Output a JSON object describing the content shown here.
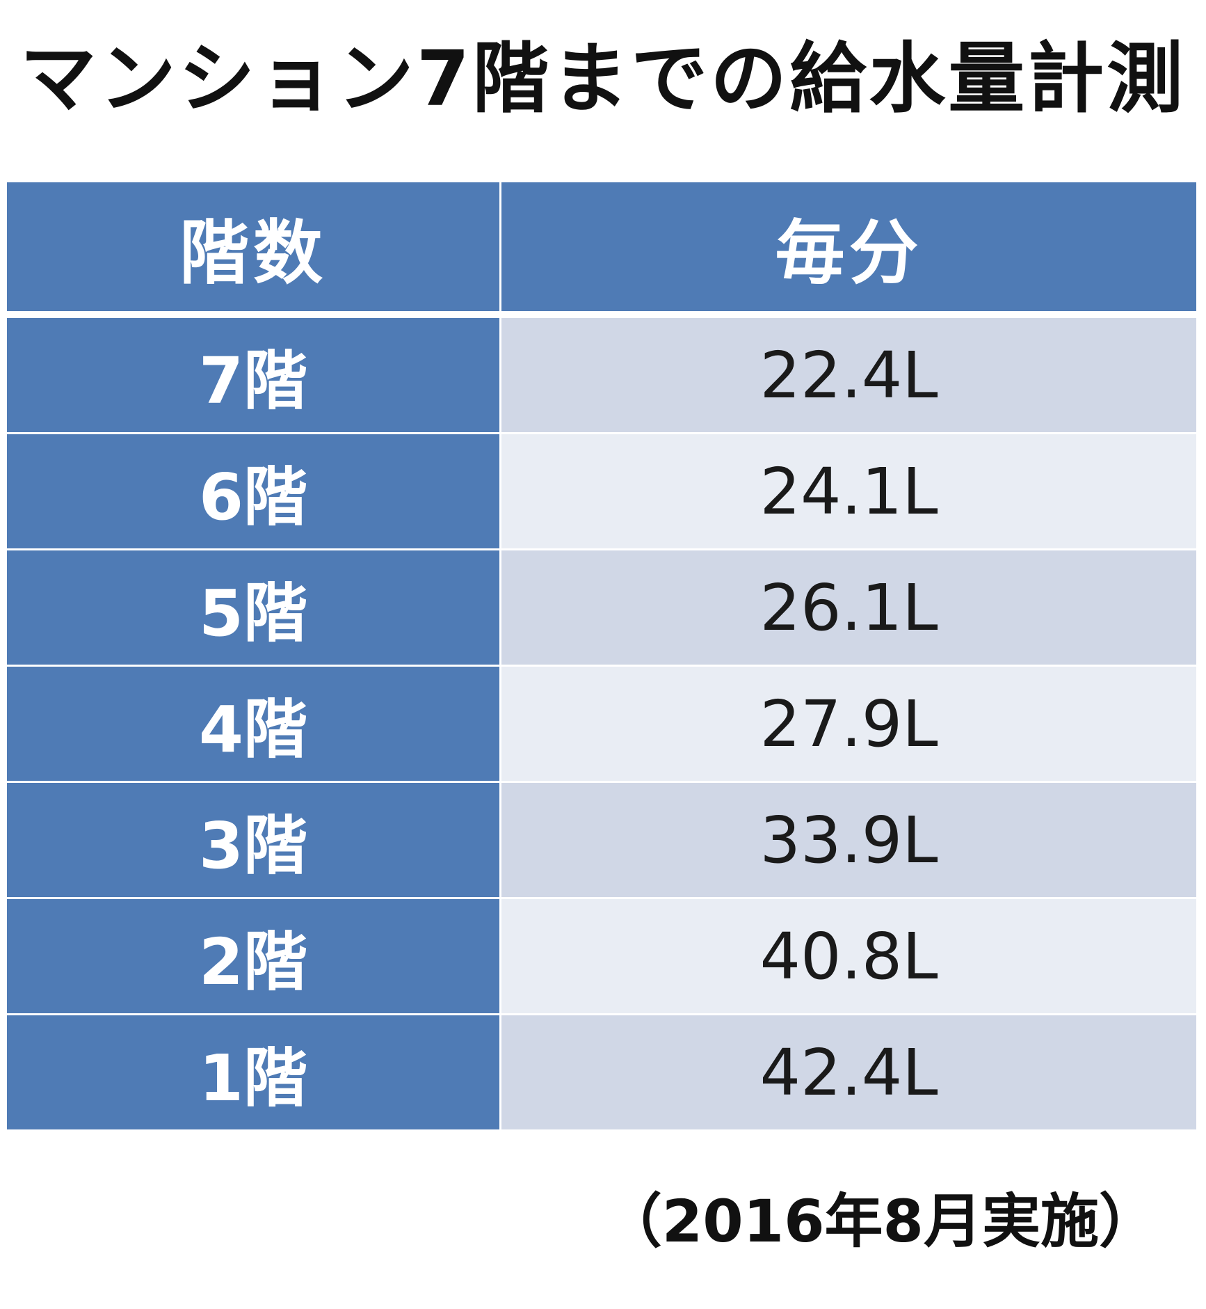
{
  "title": "マンション7階までの給水量計測",
  "table": {
    "headers": [
      "階数",
      "毎分"
    ],
    "rows": [
      {
        "floor": "7階",
        "rate": "22.4L"
      },
      {
        "floor": "6階",
        "rate": "24.1L"
      },
      {
        "floor": "5階",
        "rate": "26.1L"
      },
      {
        "floor": "4階",
        "rate": "27.9L"
      },
      {
        "floor": "3階",
        "rate": "33.9L"
      },
      {
        "floor": "2階",
        "rate": "40.8L"
      },
      {
        "floor": "1階",
        "rate": "42.4L"
      }
    ]
  },
  "note": "（2016年8月実施）",
  "colors": {
    "header_bg": "#4f7bb5",
    "row_shade_dark": "#d0d7e6",
    "row_shade_light": "#e9edf4"
  }
}
